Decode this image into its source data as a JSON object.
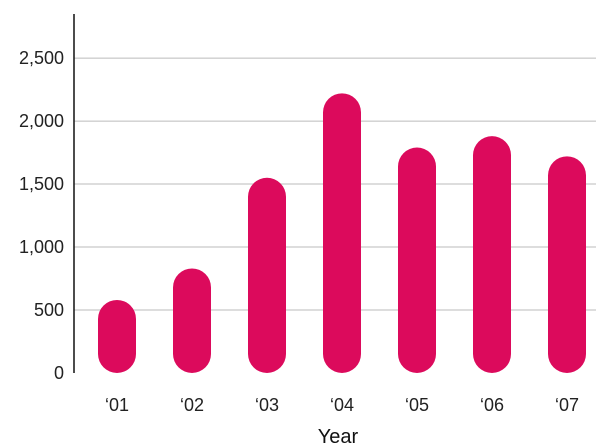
{
  "chart_data": {
    "type": "bar",
    "title": "",
    "xlabel": "Year",
    "ylabel": "",
    "categories": [
      "‘01",
      "‘02",
      "‘03",
      "‘04",
      "‘05",
      "‘06",
      "‘07"
    ],
    "values": [
      580,
      830,
      1550,
      2220,
      1790,
      1880,
      1720
    ],
    "ylim": [
      0,
      2850
    ],
    "yticks": [
      0,
      500,
      1000,
      1500,
      2000,
      2500
    ],
    "ytick_labels": [
      "0",
      "500",
      "1,000",
      "1,500",
      "2,000",
      "2,500"
    ],
    "grid": true,
    "bar_color": "#DC0A5C",
    "grid_color": "#BBBBBB",
    "axis_color": "#111111"
  }
}
